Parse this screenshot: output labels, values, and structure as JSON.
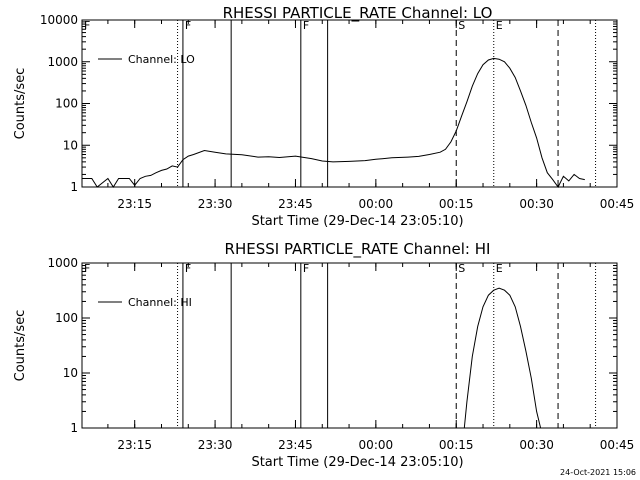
{
  "chart_data": [
    {
      "type": "line",
      "title": "RHESSI PARTICLE_RATE Channel: LO",
      "xlabel": "Start Time (29-Dec-14 23:05:10)",
      "ylabel": "Counts/sec",
      "y_scale": "log",
      "ylim": [
        1,
        10000
      ],
      "xlim": [
        "23:05:10",
        "00:45:00"
      ],
      "x_ticks": [
        "23:15",
        "23:30",
        "23:45",
        "00:00",
        "00:15",
        "00:30",
        "00:45"
      ],
      "y_ticks": [
        "1",
        "10",
        "100",
        "1000",
        "10000"
      ],
      "legend": {
        "placement": "top-left",
        "entries": [
          "Channel: LO"
        ]
      },
      "series": [
        {
          "name": "Channel: LO",
          "x": [
            "23:05:10",
            "23:07",
            "23:08",
            "23:10",
            "23:11",
            "23:12",
            "23:14",
            "23:15",
            "23:16",
            "23:17",
            "23:18",
            "23:19",
            "23:20",
            "23:21",
            "23:22",
            "23:23",
            "23:24",
            "23:25",
            "23:26",
            "23:28",
            "23:30",
            "23:32",
            "23:35",
            "23:38",
            "23:40",
            "23:42",
            "23:45",
            "23:48",
            "23:50",
            "23:52",
            "23:55",
            "23:58",
            "00:00",
            "00:03",
            "00:06",
            "00:08",
            "00:10",
            "00:12",
            "00:13",
            "00:14",
            "00:15",
            "00:16",
            "00:17",
            "00:18",
            "00:19",
            "00:20",
            "00:21",
            "00:22",
            "00:23",
            "00:24",
            "00:25",
            "00:26",
            "00:27",
            "00:28",
            "00:29",
            "00:30",
            "00:31",
            "00:32",
            "00:33",
            "00:34",
            "00:35",
            "00:36",
            "00:37",
            "00:38",
            "00:39"
          ],
          "y": [
            1.6,
            1.6,
            1,
            1.6,
            1,
            1.6,
            1.6,
            1.1,
            1.6,
            1.8,
            1.9,
            2.2,
            2.5,
            2.7,
            3.2,
            3.0,
            4.5,
            5.5,
            6.0,
            7.5,
            6.8,
            6.2,
            5.9,
            5.2,
            5.3,
            5.1,
            5.5,
            4.8,
            4.2,
            4.0,
            4.1,
            4.3,
            4.6,
            5.0,
            5.2,
            5.4,
            6.0,
            6.8,
            8.0,
            12,
            22,
            50,
            110,
            260,
            520,
            850,
            1100,
            1200,
            1150,
            1000,
            700,
            420,
            200,
            90,
            35,
            15,
            5,
            2.2,
            1.5,
            1,
            1.8,
            1.4,
            2.0,
            1.6,
            1.5
          ]
        }
      ],
      "annotations": [
        {
          "label": "F",
          "x": "23:24",
          "style": "solid"
        },
        {
          "label": "",
          "x": "23:23",
          "style": "dotted"
        },
        {
          "label": "",
          "x": "23:33",
          "style": "solid"
        },
        {
          "label": "F",
          "x": "23:46",
          "style": "solid"
        },
        {
          "label": "",
          "x": "23:51",
          "style": "solid"
        },
        {
          "label": "S",
          "x": "00:15",
          "style": "dashed"
        },
        {
          "label": "E",
          "x": "00:22",
          "style": "dotted"
        },
        {
          "label": "",
          "x": "00:34",
          "style": "dashed"
        },
        {
          "label": "",
          "x": "00:41",
          "style": "dotted"
        },
        {
          "label": "F",
          "x": "23:05:10",
          "style": "solid"
        }
      ]
    },
    {
      "type": "line",
      "title": "RHESSI PARTICLE_RATE Channel: HI",
      "xlabel": "Start Time (29-Dec-14 23:05:10)",
      "ylabel": "Counts/sec",
      "y_scale": "log",
      "ylim": [
        1,
        1000
      ],
      "xlim": [
        "23:05:10",
        "00:45:00"
      ],
      "x_ticks": [
        "23:15",
        "23:30",
        "23:45",
        "00:00",
        "00:15",
        "00:30",
        "00:45"
      ],
      "y_ticks": [
        "1",
        "10",
        "100",
        "1000"
      ],
      "legend": {
        "placement": "top-left",
        "entries": [
          "Channel: HI"
        ]
      },
      "series": [
        {
          "name": "Channel: HI",
          "x": [
            "00:16:30",
            "00:17",
            "00:18",
            "00:19",
            "00:20",
            "00:21",
            "00:22",
            "00:23",
            "00:24",
            "00:25",
            "00:26",
            "00:27",
            "00:28",
            "00:29",
            "00:30",
            "00:30:45"
          ],
          "y": [
            1,
            3,
            20,
            70,
            160,
            260,
            320,
            350,
            320,
            260,
            160,
            70,
            25,
            8,
            2,
            1
          ]
        }
      ],
      "annotations": [
        {
          "label": "F",
          "x": "23:24",
          "style": "solid"
        },
        {
          "label": "",
          "x": "23:23",
          "style": "dotted"
        },
        {
          "label": "",
          "x": "23:33",
          "style": "solid"
        },
        {
          "label": "F",
          "x": "23:46",
          "style": "solid"
        },
        {
          "label": "",
          "x": "23:51",
          "style": "solid"
        },
        {
          "label": "S",
          "x": "00:15",
          "style": "dashed"
        },
        {
          "label": "E",
          "x": "00:22",
          "style": "dotted"
        },
        {
          "label": "",
          "x": "00:34",
          "style": "dashed"
        },
        {
          "label": "",
          "x": "00:41",
          "style": "dotted"
        },
        {
          "label": "F",
          "x": "23:05:10",
          "style": "solid"
        }
      ]
    }
  ],
  "footer": {
    "timestamp": "24-Oct-2021 15:06"
  }
}
